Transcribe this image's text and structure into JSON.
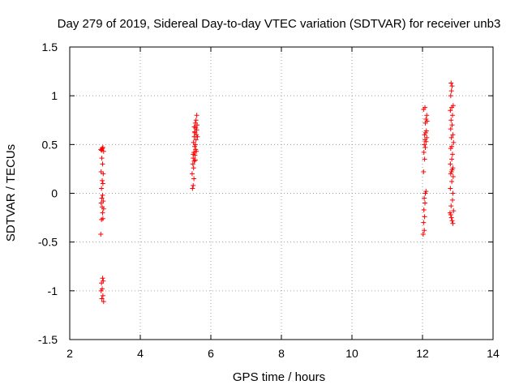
{
  "chart_data": {
    "type": "scatter",
    "title": "Day 279 of 2019, Sidereal Day-to-day VTEC variation (SDTVAR) for receiver unb3",
    "xlabel": "GPS time / hours",
    "ylabel": "SDTVAR / TECUs",
    "xlim": [
      2,
      14
    ],
    "ylim": [
      -1.5,
      1.5
    ],
    "xticks": [
      2,
      4,
      6,
      8,
      10,
      12,
      14
    ],
    "yticks": [
      -1.5,
      -1,
      -0.5,
      0,
      0.5,
      1,
      1.5
    ],
    "xtick_labels": [
      "2",
      "4",
      "6",
      "8",
      "10",
      "12",
      "14"
    ],
    "ytick_labels": [
      "-1.5",
      "-1",
      "-0.5",
      "0",
      "0.5",
      "1",
      "1.5"
    ],
    "grid": true,
    "marker": "+",
    "series": [
      {
        "name": "SDTVAR",
        "color": "#ff0000",
        "points": [
          [
            2.88,
            0.45
          ],
          [
            2.9,
            0.44
          ],
          [
            2.92,
            0.46
          ],
          [
            2.94,
            0.47
          ],
          [
            2.96,
            0.43
          ],
          [
            2.91,
            0.36
          ],
          [
            2.93,
            0.3
          ],
          [
            2.89,
            0.22
          ],
          [
            2.95,
            0.2
          ],
          [
            2.92,
            0.13
          ],
          [
            2.94,
            0.1
          ],
          [
            2.9,
            0.05
          ],
          [
            2.93,
            -0.02
          ],
          [
            2.91,
            -0.05
          ],
          [
            2.95,
            -0.08
          ],
          [
            2.89,
            -0.1
          ],
          [
            2.92,
            -0.14
          ],
          [
            2.96,
            -0.16
          ],
          [
            2.93,
            -0.2
          ],
          [
            2.9,
            -0.27
          ],
          [
            2.94,
            -0.26
          ],
          [
            2.88,
            -0.42
          ],
          [
            2.93,
            -0.87
          ],
          [
            2.9,
            -0.92
          ],
          [
            2.95,
            -0.9
          ],
          [
            2.92,
            -0.98
          ],
          [
            2.89,
            -1.0
          ],
          [
            2.94,
            -1.05
          ],
          [
            2.91,
            -1.08
          ],
          [
            2.96,
            -1.11
          ],
          [
            5.48,
            0.05
          ],
          [
            5.5,
            0.08
          ],
          [
            5.52,
            0.15
          ],
          [
            5.47,
            0.2
          ],
          [
            5.51,
            0.26
          ],
          [
            5.49,
            0.3
          ],
          [
            5.53,
            0.33
          ],
          [
            5.5,
            0.36
          ],
          [
            5.55,
            0.39
          ],
          [
            5.52,
            0.42
          ],
          [
            5.57,
            0.45
          ],
          [
            5.54,
            0.48
          ],
          [
            5.56,
            0.5
          ],
          [
            5.51,
            0.52
          ],
          [
            5.58,
            0.55
          ],
          [
            5.53,
            0.58
          ],
          [
            5.59,
            0.6
          ],
          [
            5.55,
            0.62
          ],
          [
            5.6,
            0.65
          ],
          [
            5.57,
            0.67
          ],
          [
            5.61,
            0.7
          ],
          [
            5.56,
            0.72
          ],
          [
            5.58,
            0.75
          ],
          [
            5.6,
            0.8
          ],
          [
            5.54,
            0.63
          ],
          [
            5.62,
            0.58
          ],
          [
            5.5,
            0.4
          ],
          [
            5.56,
            0.34
          ],
          [
            5.59,
            0.43
          ],
          [
            5.53,
            0.68
          ],
          [
            12.02,
            -0.42
          ],
          [
            12.05,
            -0.38
          ],
          [
            12.03,
            -0.3
          ],
          [
            12.06,
            -0.24
          ],
          [
            12.04,
            -0.17
          ],
          [
            12.07,
            -0.1
          ],
          [
            12.05,
            -0.05
          ],
          [
            12.08,
            0.0
          ],
          [
            12.1,
            0.02
          ],
          [
            12.03,
            0.22
          ],
          [
            12.06,
            0.35
          ],
          [
            12.04,
            0.42
          ],
          [
            12.08,
            0.47
          ],
          [
            12.05,
            0.5
          ],
          [
            12.1,
            0.53
          ],
          [
            12.07,
            0.55
          ],
          [
            12.12,
            0.57
          ],
          [
            12.06,
            0.6
          ],
          [
            12.09,
            0.62
          ],
          [
            12.11,
            0.64
          ],
          [
            12.08,
            0.72
          ],
          [
            12.13,
            0.74
          ],
          [
            12.1,
            0.76
          ],
          [
            12.12,
            0.8
          ],
          [
            12.03,
            0.86
          ],
          [
            12.07,
            0.88
          ],
          [
            12.78,
            -0.2
          ],
          [
            12.8,
            -0.22
          ],
          [
            12.82,
            -0.25
          ],
          [
            12.84,
            -0.28
          ],
          [
            12.86,
            -0.31
          ],
          [
            12.81,
            -0.13
          ],
          [
            12.85,
            -0.07
          ],
          [
            12.79,
            0.05
          ],
          [
            12.83,
            0.12
          ],
          [
            12.87,
            0.17
          ],
          [
            12.8,
            0.2
          ],
          [
            12.82,
            0.22
          ],
          [
            12.84,
            0.24
          ],
          [
            12.86,
            0.26
          ],
          [
            12.79,
            0.3
          ],
          [
            12.83,
            0.35
          ],
          [
            12.85,
            0.4
          ],
          [
            12.8,
            0.46
          ],
          [
            12.88,
            0.52
          ],
          [
            12.82,
            0.57
          ],
          [
            12.86,
            0.6
          ],
          [
            12.8,
            0.66
          ],
          [
            12.84,
            0.7
          ],
          [
            12.81,
            0.75
          ],
          [
            12.85,
            0.8
          ],
          [
            12.79,
            0.85
          ],
          [
            12.83,
            0.88
          ],
          [
            12.87,
            0.9
          ],
          [
            12.8,
            1.0
          ],
          [
            12.82,
            1.05
          ],
          [
            12.84,
            1.1
          ],
          [
            12.81,
            1.13
          ],
          [
            12.88,
            -0.18
          ],
          [
            12.86,
            0.0
          ],
          [
            12.83,
            0.48
          ]
        ]
      }
    ]
  }
}
